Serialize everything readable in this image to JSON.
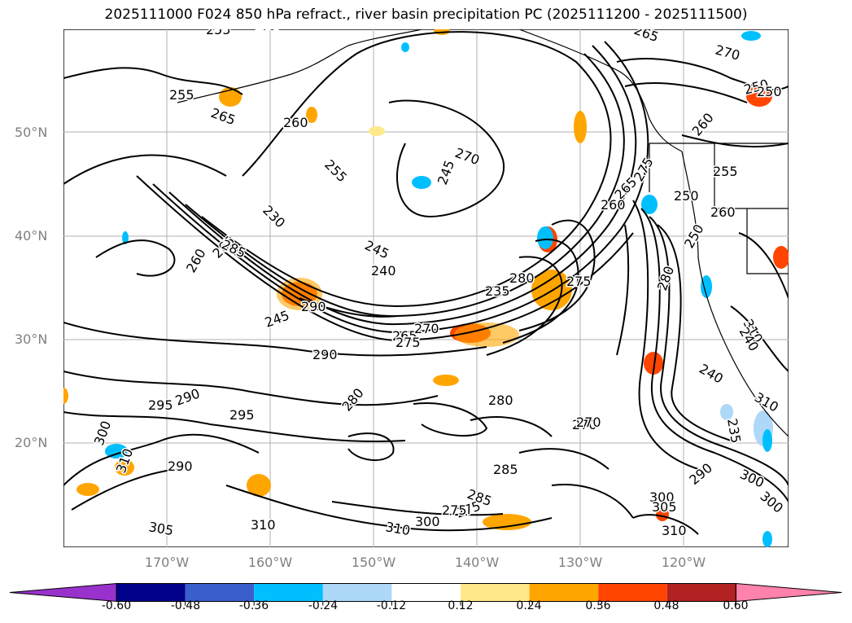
{
  "title": "2025111000 F024 850 hPa refract., river basin precipitation PC (2025111200 - 2025111500)",
  "axes": {
    "lat_labels": [
      "50°N",
      "40°N",
      "30°N",
      "20°N"
    ],
    "lon_labels": [
      "170°W",
      "160°W",
      "150°W",
      "140°W",
      "130°W",
      "120°W"
    ]
  },
  "contour_labels": [
    "255",
    "260",
    "265",
    "270",
    "255",
    "250",
    "260",
    "265",
    "270",
    "275",
    "260",
    "265",
    "255",
    "245",
    "240",
    "235",
    "230",
    "245",
    "285",
    "290",
    "245",
    "265",
    "270",
    "275",
    "290",
    "280",
    "275",
    "295",
    "290",
    "295",
    "280",
    "280",
    "270",
    "285",
    "240",
    "235",
    "290",
    "300",
    "310",
    "305",
    "310",
    "310",
    "300",
    "275",
    "285",
    "275",
    "300",
    "290",
    "300",
    "305",
    "310",
    "300",
    "310",
    "270",
    "265",
    "260",
    "250",
    "250",
    "260",
    "255",
    "260",
    "250",
    "240",
    "310",
    "280"
  ],
  "colorbar": {
    "ticks": [
      "-0.60",
      "-0.48",
      "-0.36",
      "-0.24",
      "-0.12",
      "0.12",
      "0.24",
      "0.36",
      "0.48",
      "0.60"
    ],
    "colors": [
      "#9932cc",
      "#00008b",
      "#3a5fcd",
      "#00bfff",
      "#add8f7",
      "#ffffff",
      "#ffe98a",
      "#ffa500",
      "#ff4500",
      "#b22222",
      "#ff82ab"
    ]
  }
}
